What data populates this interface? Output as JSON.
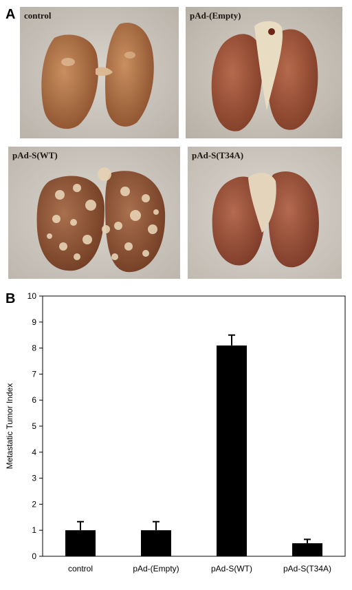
{
  "figure": {
    "panel_a_letter": "A",
    "panel_b_letter": "B",
    "photos": [
      {
        "label": "control",
        "style": "normal"
      },
      {
        "label": "pAd-(Empty)",
        "style": "normal"
      },
      {
        "label": "pAd-S(WT)",
        "style": "metastases"
      },
      {
        "label": "pAd-S(T34A)",
        "style": "normal"
      }
    ]
  },
  "chart_data": {
    "type": "bar",
    "categories": [
      "control",
      "pAd-(Empty)",
      "pAd-S(WT)",
      "pAd-S(T34A)"
    ],
    "values": [
      1.0,
      1.0,
      8.1,
      0.5
    ],
    "errors": [
      0.33,
      0.33,
      0.4,
      0.15
    ],
    "ylabel": "Metastatic Tumor Index",
    "xlabel": "",
    "ylim": [
      0,
      10
    ],
    "yticks": [
      0,
      1,
      2,
      3,
      4,
      5,
      6,
      7,
      8,
      9,
      10
    ],
    "bar_color": "#000000",
    "grid": false,
    "legend": "none"
  }
}
